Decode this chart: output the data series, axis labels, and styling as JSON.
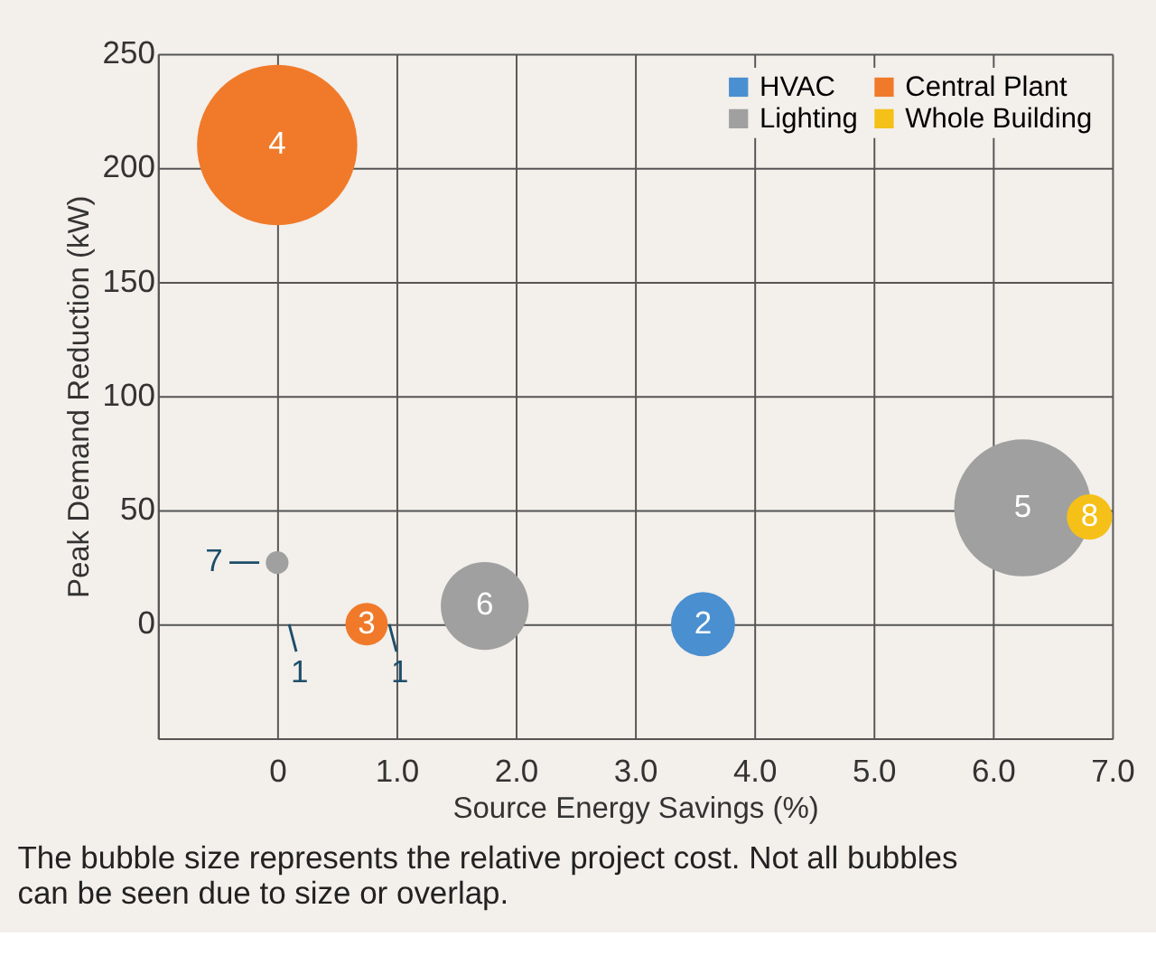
{
  "chart_data": {
    "type": "bubble",
    "xlabel": "Source Energy Savings (%)",
    "ylabel": "Peak Demand Reduction (kW)",
    "xlim": [
      -1,
      7
    ],
    "xticks": [
      {
        "value": -1,
        "label": null
      },
      0,
      {
        "value": 1,
        "label": "1.0"
      },
      {
        "value": 2,
        "label": "2.0"
      },
      {
        "value": 3,
        "label": "3.0"
      },
      {
        "value": 4,
        "label": "4.0"
      },
      {
        "value": 5,
        "label": "5.0"
      },
      {
        "value": 6,
        "label": "6.0"
      },
      {
        "value": 7,
        "label": "7.0"
      }
    ],
    "ylim": [
      -50,
      250
    ],
    "yticks": [
      {
        "value": -50,
        "label": null
      },
      0,
      50,
      100,
      150,
      200,
      250
    ],
    "grid": true,
    "legend": "top right",
    "series": [
      {
        "name": "HVAC",
        "color": "#4a8fd0",
        "x": [
          3.57
        ],
        "values": [
          0
        ],
        "sizes": [
          0.16
        ]
      },
      {
        "name": "Central Plant",
        "color": "#f07a2a",
        "x": [
          0,
          0.75
        ],
        "values": [
          210,
          0
        ],
        "sizes": [
          1,
          0.07
        ]
      },
      {
        "name": "Lighting",
        "color": "#a0a0a0",
        "x": [
          0,
          1.74,
          6.25
        ],
        "values": [
          27,
          8,
          51
        ],
        "sizes": [
          0.02,
          0.3,
          0.73
        ]
      },
      {
        "name": "Whole Building",
        "color": "#f5c018",
        "x": [
          6.81
        ],
        "values": [
          47
        ],
        "sizes": [
          0.08
        ]
      }
    ],
    "annotations": [
      {
        "text": "2",
        "x": 3.57,
        "y": 0
      },
      {
        "text": "4",
        "x": 0,
        "y": 210
      },
      {
        "text": "3",
        "x": 0.75,
        "y": 0
      },
      {
        "text": "7",
        "x": 0,
        "y": 27
      },
      {
        "text": "6",
        "x": 1.74,
        "y": 8
      },
      {
        "text": "5",
        "x": 6.25,
        "y": 51
      },
      {
        "text": "8",
        "x": 6.81,
        "y": 47
      },
      "1",
      "1",
      "The bubble size represents the relative project cost. Not all bubbles can be seen due to size or overlap."
    ]
  }
}
